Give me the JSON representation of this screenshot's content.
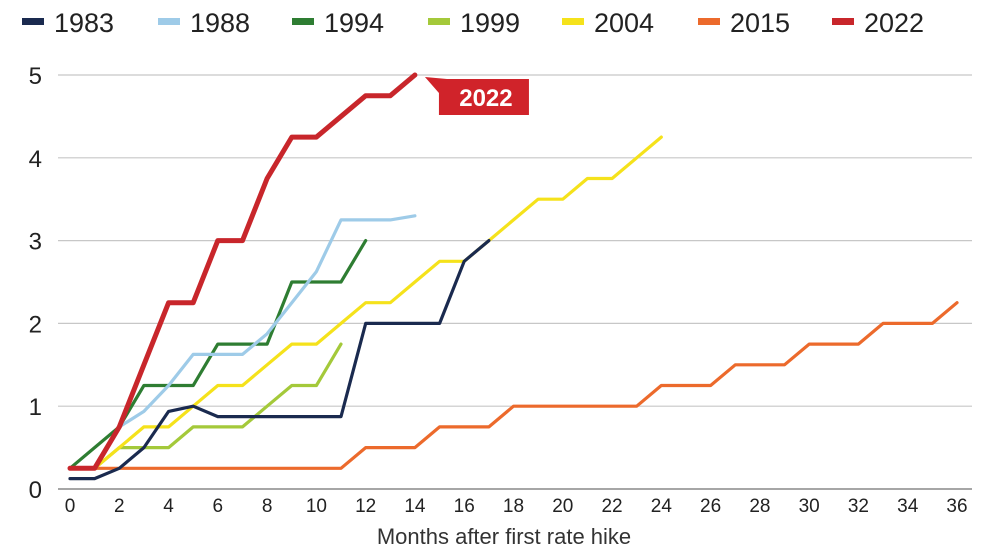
{
  "chart_data": {
    "type": "line",
    "title": "",
    "xlabel": "Months after first rate hike",
    "ylabel": "",
    "xlim": [
      0,
      36
    ],
    "ylim": [
      0,
      5
    ],
    "xticks": [
      0,
      2,
      4,
      6,
      8,
      10,
      12,
      14,
      16,
      18,
      20,
      22,
      24,
      26,
      28,
      30,
      32,
      34,
      36
    ],
    "yticks": [
      0,
      1,
      2,
      3,
      4,
      5
    ],
    "grid": "horizontal",
    "legend_position": "top",
    "callout": {
      "text": "2022",
      "series": "2022",
      "color": "#d0232a"
    },
    "series": [
      {
        "name": "1983",
        "color": "#1a2a4f",
        "x": [
          0,
          1,
          2,
          3,
          4,
          5,
          6,
          7,
          8,
          9,
          10,
          11,
          12,
          13,
          14,
          15,
          16,
          17
        ],
        "y": [
          0.125,
          0.125,
          0.25,
          0.5,
          0.9375,
          1.0,
          0.875,
          0.875,
          0.875,
          0.875,
          0.875,
          0.875,
          2.0,
          2.0,
          2.0,
          2.0,
          2.75,
          3.0
        ]
      },
      {
        "name": "1988",
        "color": "#9ecbe8",
        "x": [
          0,
          1,
          2,
          3,
          4,
          5,
          6,
          7,
          8,
          9,
          10,
          11,
          12,
          13,
          14
        ],
        "y": [
          0.25,
          0.25,
          0.75,
          0.9375,
          1.25,
          1.625,
          1.625,
          1.625,
          1.875,
          2.25,
          2.625,
          3.25,
          3.25,
          3.25,
          3.3
        ]
      },
      {
        "name": "1994",
        "color": "#2e7d32",
        "x": [
          0,
          1,
          2,
          3,
          4,
          5,
          6,
          7,
          8,
          9,
          10,
          11,
          12
        ],
        "y": [
          0.25,
          0.5,
          0.75,
          1.25,
          1.25,
          1.25,
          1.75,
          1.75,
          1.75,
          2.5,
          2.5,
          2.5,
          3.0
        ]
      },
      {
        "name": "1999",
        "color": "#a4c93a",
        "x": [
          0,
          1,
          2,
          3,
          4,
          5,
          6,
          7,
          8,
          9,
          10,
          11
        ],
        "y": [
          0.25,
          0.25,
          0.5,
          0.5,
          0.5,
          0.75,
          0.75,
          0.75,
          1.0,
          1.25,
          1.25,
          1.75
        ]
      },
      {
        "name": "2004",
        "color": "#f5e21b",
        "x": [
          0,
          1,
          2,
          3,
          4,
          5,
          6,
          7,
          8,
          9,
          10,
          11,
          12,
          13,
          14,
          15,
          16,
          17,
          18,
          19,
          20,
          21,
          22,
          23,
          24
        ],
        "y": [
          0.25,
          0.25,
          0.5,
          0.75,
          0.75,
          1.0,
          1.25,
          1.25,
          1.5,
          1.75,
          1.75,
          2.0,
          2.25,
          2.25,
          2.5,
          2.75,
          2.75,
          3.0,
          3.25,
          3.5,
          3.5,
          3.75,
          3.75,
          4.0,
          4.25
        ]
      },
      {
        "name": "2015",
        "color": "#ec6a2c",
        "x": [
          0,
          1,
          2,
          3,
          4,
          5,
          6,
          7,
          8,
          9,
          10,
          11,
          12,
          13,
          14,
          15,
          16,
          17,
          18,
          19,
          20,
          21,
          22,
          23,
          24,
          25,
          26,
          27,
          28,
          29,
          30,
          31,
          32,
          33,
          34,
          35,
          36
        ],
        "y": [
          0.25,
          0.25,
          0.25,
          0.25,
          0.25,
          0.25,
          0.25,
          0.25,
          0.25,
          0.25,
          0.25,
          0.25,
          0.5,
          0.5,
          0.5,
          0.75,
          0.75,
          0.75,
          1.0,
          1.0,
          1.0,
          1.0,
          1.0,
          1.0,
          1.25,
          1.25,
          1.25,
          1.5,
          1.5,
          1.5,
          1.75,
          1.75,
          1.75,
          2.0,
          2.0,
          2.0,
          2.25
        ]
      },
      {
        "name": "2022",
        "color": "#c8262b",
        "x": [
          0,
          1,
          2,
          3,
          4,
          5,
          6,
          7,
          8,
          9,
          10,
          11,
          12,
          13,
          14
        ],
        "y": [
          0.25,
          0.25,
          0.75,
          1.5,
          2.25,
          2.25,
          3.0,
          3.0,
          3.75,
          4.25,
          4.25,
          4.5,
          4.75,
          4.75,
          5.0
        ]
      }
    ]
  }
}
